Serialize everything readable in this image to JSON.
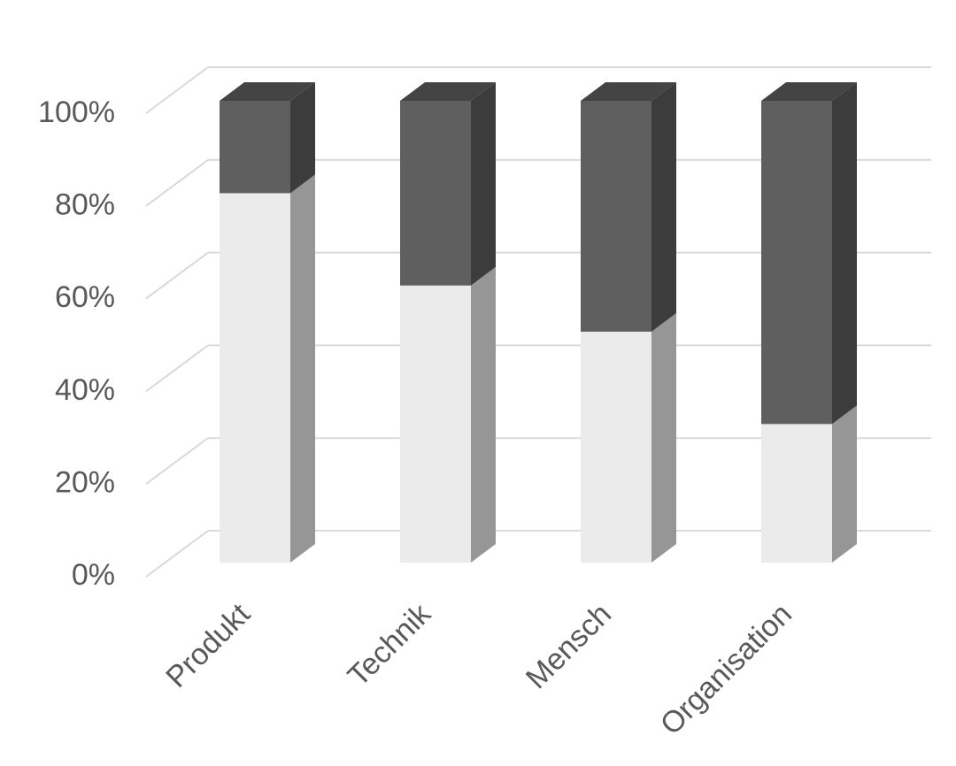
{
  "chart_data": {
    "type": "stacked-bar-3d",
    "categories": [
      "Produkt",
      "Technik",
      "Mensch",
      "Organisation"
    ],
    "series": [
      {
        "color": "#ebebeb",
        "values": [
          80,
          60,
          50,
          30
        ]
      },
      {
        "color": "#5f5f5f",
        "values": [
          20,
          40,
          50,
          70
        ]
      }
    ],
    "ylim": [
      0,
      100
    ],
    "yticks": [
      {
        "value": 0,
        "label": "0%"
      },
      {
        "value": 20,
        "label": "20%"
      },
      {
        "value": 40,
        "label": "40%"
      },
      {
        "value": 60,
        "label": "60%"
      },
      {
        "value": 80,
        "label": "80%"
      },
      {
        "value": 100,
        "label": "100%"
      }
    ],
    "grid": true
  }
}
